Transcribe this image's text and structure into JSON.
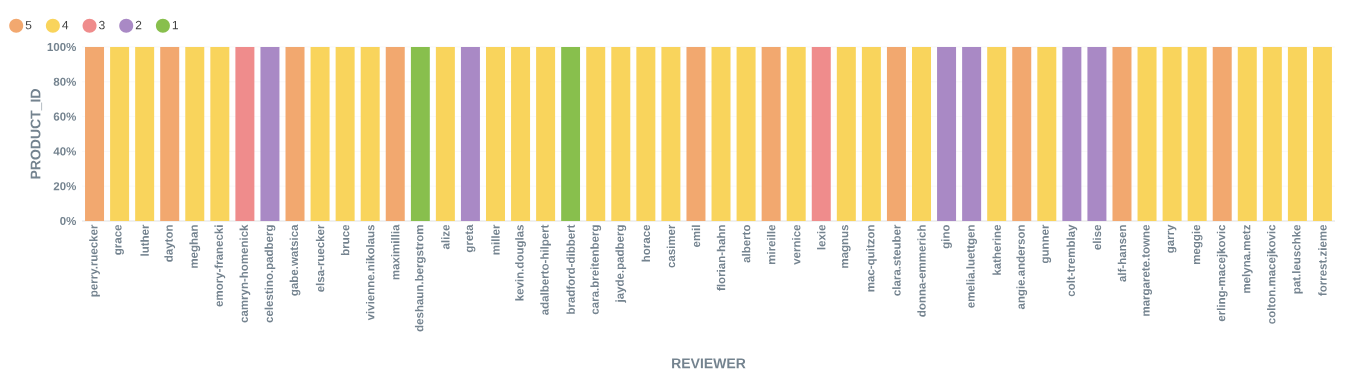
{
  "chart_data": {
    "type": "bar",
    "stacked": true,
    "xlabel": "REVIEWER",
    "ylabel": "PRODUCT_ID",
    "categories": [
      "perry.ruecker",
      "grace",
      "luther",
      "dayton",
      "meghan",
      "emory-franecki",
      "camryn-homenick",
      "celestino.padberg",
      "gabe.watsica",
      "elsa-ruecker",
      "bruce",
      "vivienne.nikolaus",
      "maximillia",
      "deshaun.bergstrom",
      "alize",
      "greta",
      "miller",
      "kevin.douglas",
      "adalberto-hilpert",
      "bradford-dibbert",
      "cara.breitenberg",
      "jayde.padberg",
      "horace",
      "casimer",
      "emil",
      "florian-hahn",
      "alberto",
      "mireille",
      "vernice",
      "lexie",
      "magnus",
      "mac-quitzon",
      "clara.steuber",
      "donna-emmerich",
      "gino",
      "emelia.luettgen",
      "katherine",
      "angie.anderson",
      "gunner",
      "colt-tremblay",
      "elise",
      "alf-hansen",
      "margarete.towne",
      "garry",
      "meggie",
      "erling-macejkovic",
      "melyna.metz",
      "colton.macejkovic",
      "pat.leuschke",
      "forrest.zieme"
    ],
    "series": [
      {
        "name": "5",
        "color": "#f2a86f",
        "values": [
          100,
          null,
          null,
          100,
          null,
          null,
          null,
          null,
          100,
          null,
          null,
          null,
          100,
          null,
          null,
          null,
          null,
          null,
          null,
          null,
          null,
          null,
          null,
          null,
          100,
          null,
          null,
          100,
          null,
          null,
          null,
          null,
          100,
          null,
          null,
          null,
          null,
          100,
          null,
          null,
          null,
          100,
          null,
          null,
          null,
          100,
          null,
          null,
          null,
          null
        ]
      },
      {
        "name": "4",
        "color": "#f9d45c",
        "values": [
          null,
          100,
          100,
          null,
          100,
          100,
          null,
          null,
          null,
          100,
          100,
          100,
          null,
          null,
          100,
          null,
          100,
          100,
          100,
          null,
          100,
          100,
          100,
          100,
          null,
          100,
          100,
          null,
          100,
          null,
          100,
          100,
          null,
          100,
          null,
          null,
          100,
          null,
          100,
          null,
          null,
          null,
          100,
          100,
          100,
          null,
          100,
          100,
          100,
          100
        ]
      },
      {
        "name": "3",
        "color": "#ef8c8c",
        "values": [
          null,
          null,
          null,
          null,
          null,
          null,
          100,
          null,
          null,
          null,
          null,
          null,
          null,
          null,
          null,
          null,
          null,
          null,
          null,
          null,
          null,
          null,
          null,
          null,
          null,
          null,
          null,
          null,
          null,
          100,
          null,
          null,
          null,
          null,
          null,
          null,
          null,
          null,
          null,
          null,
          null,
          null,
          null,
          null,
          null,
          null,
          null,
          null,
          null,
          null
        ]
      },
      {
        "name": "2",
        "color": "#a989c5",
        "values": [
          null,
          null,
          null,
          null,
          null,
          null,
          null,
          100,
          null,
          null,
          null,
          null,
          null,
          null,
          null,
          100,
          null,
          null,
          null,
          null,
          null,
          null,
          null,
          null,
          null,
          null,
          null,
          null,
          null,
          null,
          null,
          null,
          null,
          null,
          100,
          100,
          null,
          null,
          null,
          100,
          100,
          null,
          null,
          null,
          null,
          null,
          null,
          null,
          null,
          null
        ]
      },
      {
        "name": "1",
        "color": "#88bf4d",
        "values": [
          null,
          null,
          null,
          null,
          null,
          null,
          null,
          null,
          null,
          null,
          null,
          null,
          null,
          100,
          null,
          null,
          null,
          null,
          null,
          100,
          null,
          null,
          null,
          null,
          null,
          null,
          null,
          null,
          null,
          null,
          null,
          null,
          null,
          null,
          null,
          null,
          null,
          null,
          null,
          null,
          null,
          null,
          null,
          null,
          null,
          null,
          null,
          null,
          null,
          null
        ]
      }
    ],
    "ylim": [
      0,
      100
    ],
    "yticks": [
      {
        "value": 0,
        "label": "0%"
      },
      {
        "value": 20,
        "label": "20%"
      },
      {
        "value": 40,
        "label": "40%"
      },
      {
        "value": 60,
        "label": "60%"
      },
      {
        "value": 80,
        "label": "80%"
      },
      {
        "value": 100,
        "label": "100%"
      }
    ],
    "grid": "y",
    "legend": "top left"
  }
}
